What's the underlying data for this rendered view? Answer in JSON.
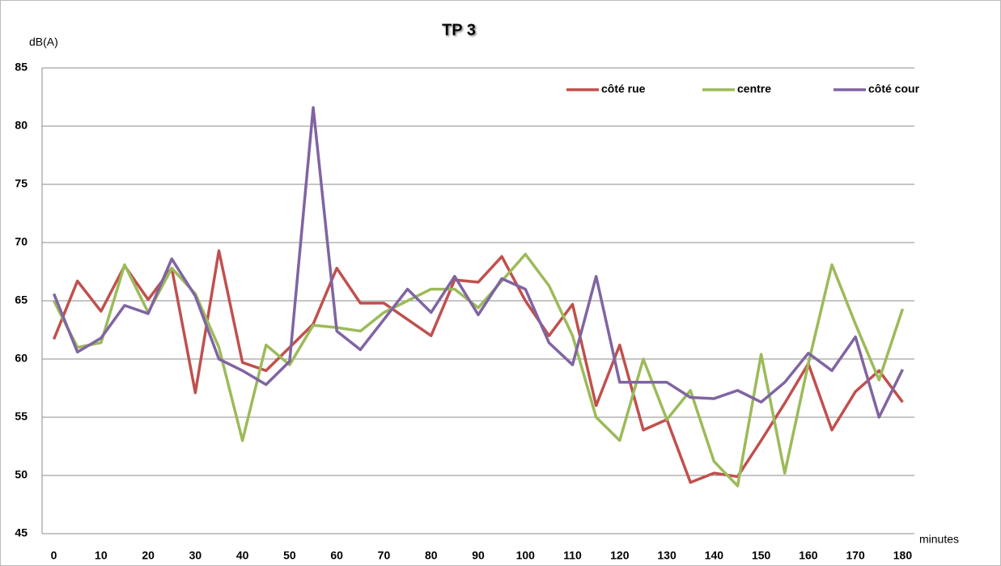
{
  "chart_data": {
    "type": "line",
    "title": "TP 3",
    "y_label": "dB(A)",
    "x_label": "minutes",
    "categories": [
      "0",
      null,
      "10",
      null,
      "20",
      null,
      "30",
      null,
      "40",
      null,
      "50",
      null,
      "60",
      null,
      "70",
      null,
      "80",
      null,
      "90",
      null,
      "100",
      null,
      "110",
      null,
      "120",
      null,
      "130",
      null,
      "140",
      null,
      "150",
      null,
      "160",
      null,
      "170",
      null,
      "180"
    ],
    "series": [
      {
        "name": "côté rue",
        "color": "#c0504d",
        "values": [
          61.7,
          66.7,
          64.1,
          68.0,
          65.1,
          67.8,
          57.1,
          69.3,
          59.7,
          59.0,
          61.0,
          63.0,
          67.8,
          64.8,
          64.8,
          63.4,
          62.0,
          66.8,
          66.6,
          68.8,
          65.0,
          62.0,
          64.7,
          56.0,
          61.2,
          53.9,
          54.8,
          49.4,
          50.2,
          49.9,
          53.0,
          56.2,
          59.6,
          53.9,
          57.2,
          59.0,
          56.3
        ]
      },
      {
        "name": "centre",
        "color": "#9bbb59",
        "values": [
          65.0,
          61.0,
          61.4,
          68.1,
          64.0,
          67.8,
          65.6,
          61.0,
          53.0,
          61.2,
          59.5,
          62.9,
          62.7,
          62.4,
          64.0,
          65.0,
          66.0,
          66.0,
          64.4,
          66.7,
          69.0,
          66.3,
          62.0,
          55.0,
          53.0,
          60.0,
          54.8,
          57.3,
          51.2,
          49.1,
          60.4,
          50.2,
          59.6,
          68.1,
          63.0,
          58.2,
          64.3
        ]
      },
      {
        "name": "côté cour",
        "color": "#8064a2",
        "values": [
          65.6,
          60.6,
          61.8,
          64.6,
          63.9,
          68.6,
          65.4,
          60.0,
          59.0,
          57.8,
          59.8,
          81.6,
          62.4,
          60.8,
          63.4,
          66.0,
          64.0,
          67.1,
          63.8,
          66.9,
          66.0,
          61.4,
          59.5,
          67.1,
          58.0,
          58.0,
          58.0,
          56.7,
          56.6,
          57.3,
          56.3,
          58.0,
          60.5,
          59.0,
          61.9,
          55.0,
          59.1
        ]
      }
    ],
    "ylim": [
      45,
      85
    ],
    "yticks": [
      45,
      50,
      55,
      60,
      65,
      70,
      75,
      80,
      85
    ],
    "grid": true,
    "legend": "top-right"
  }
}
